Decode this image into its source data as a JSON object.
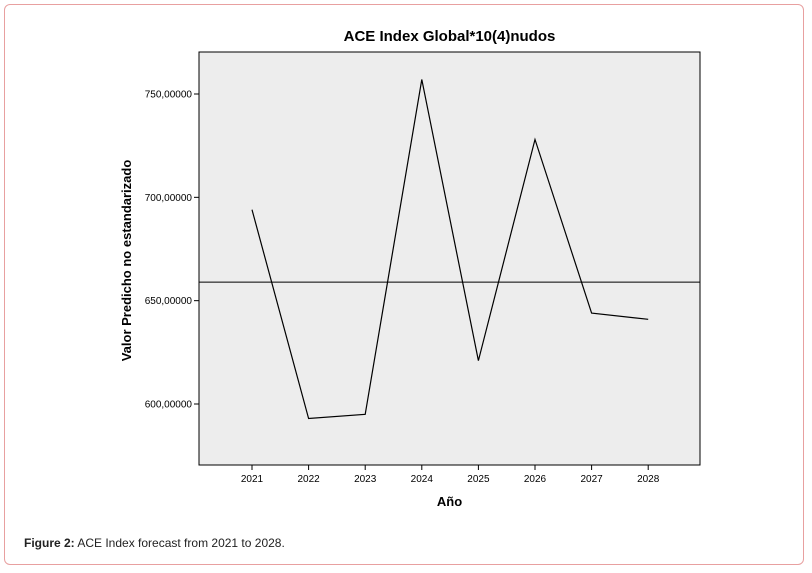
{
  "chart_data": {
    "type": "line",
    "title": "ACE Index Global*10(4)nudos",
    "xlabel": "Año",
    "ylabel": "Valor Predicho no estandarizado",
    "categories": [
      "2021",
      "2022",
      "2023",
      "2024",
      "2025",
      "2026",
      "2027",
      "2028"
    ],
    "series": [
      {
        "values": [
          694,
          593,
          595,
          757,
          621,
          728,
          644,
          641
        ]
      }
    ],
    "reference_line": 659,
    "ylim": [
      570,
      771
    ],
    "yticks": [
      600,
      650,
      700,
      750
    ],
    "ytick_labels": [
      "600,00000",
      "650,00000",
      "700,00000",
      "750,00000"
    ],
    "grid": false,
    "plot_background": "#ededed",
    "line_color": "#000000"
  },
  "caption": {
    "label": "Figure 2:",
    "text": "ACE Index forecast from 2021 to 2028."
  }
}
